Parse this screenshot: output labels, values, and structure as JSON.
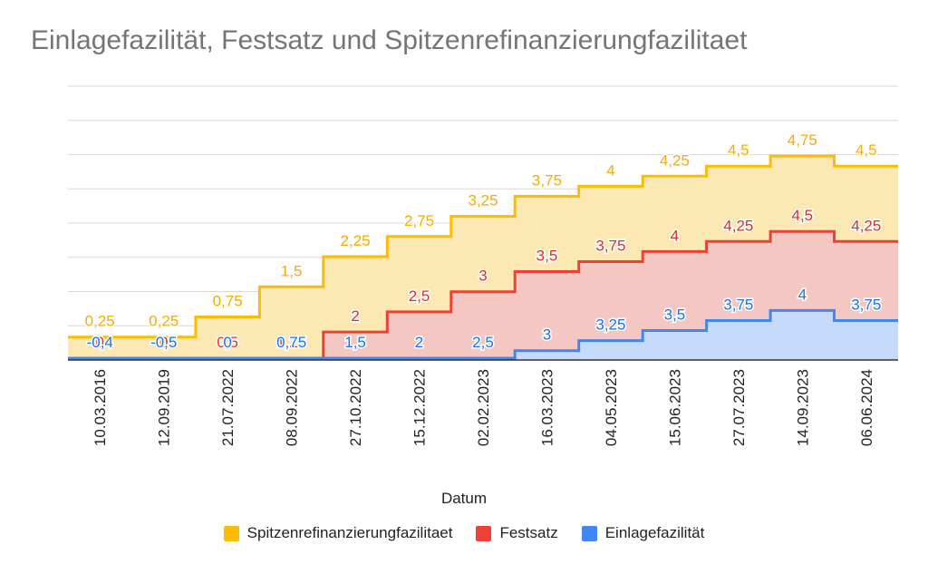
{
  "chart_data": {
    "type": "area",
    "title": "Einlagefazilität, Festsatz und Spitzenrefinanzierungfazilitaet",
    "xlabel": "Datum",
    "ylabel": "",
    "categories": [
      "10.03.2016",
      "12.09.2019",
      "21.07.2022",
      "08.09.2022",
      "27.10.2022",
      "15.12.2022",
      "02.02.2023",
      "16.03.2023",
      "04.05.2023",
      "15.06.2023",
      "27.07.2023",
      "14.09.2023",
      "06.06.2024"
    ],
    "series": [
      {
        "name": "Spitzenrefinanzierungfazilitaet",
        "color": "#fbbc04",
        "values": [
          0.25,
          0.25,
          0.75,
          1.5,
          2.25,
          2.75,
          3.25,
          3.75,
          4,
          4.25,
          4.5,
          4.75,
          4.5
        ],
        "labels": [
          "0,25",
          "0,25",
          "0,75",
          "1,5",
          "2,25",
          "2,75",
          "3,25",
          "3,75",
          "4",
          "4,25",
          "4,5",
          "4,75",
          "4,5"
        ]
      },
      {
        "name": "Festsatz",
        "color": "#ea4335",
        "values": [
          0,
          0,
          0.5,
          1.25,
          2,
          2.5,
          3,
          3.5,
          3.75,
          4,
          4.25,
          4.5,
          4.25
        ],
        "labels": [
          "0",
          "0",
          "0,5",
          "1,25",
          "2",
          "2,5",
          "3",
          "3,5",
          "3,75",
          "4",
          "4,25",
          "4,5",
          "4,25"
        ]
      },
      {
        "name": "Einlagefazilität",
        "color": "#4285f4",
        "values": [
          -0.4,
          -0.5,
          0,
          0.75,
          1.5,
          2,
          2.5,
          3,
          3.25,
          3.5,
          3.75,
          4,
          3.75
        ],
        "labels": [
          "-0,4",
          "-0,5",
          "0",
          "0,75",
          "1,5",
          "2",
          "2,5",
          "3",
          "3,25",
          "3,5",
          "3,75",
          "4",
          "3,75"
        ]
      }
    ],
    "stacked": false,
    "step": true,
    "ylim": [
      -0.5,
      5
    ],
    "grid": true,
    "legend_position": "bottom"
  }
}
